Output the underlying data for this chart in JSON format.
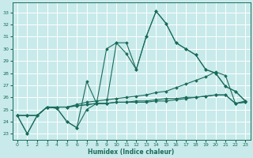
{
  "xlabel": "Humidex (Indice chaleur)",
  "xlim": [
    -0.5,
    23.5
  ],
  "ylim": [
    22.5,
    33.8
  ],
  "yticks": [
    23,
    24,
    25,
    26,
    27,
    28,
    29,
    30,
    31,
    32,
    33
  ],
  "xticks": [
    0,
    1,
    2,
    3,
    4,
    5,
    6,
    7,
    8,
    9,
    10,
    11,
    12,
    13,
    14,
    15,
    16,
    17,
    18,
    19,
    20,
    21,
    22,
    23
  ],
  "bg_color": "#c8eaea",
  "line_color": "#1a6b5a",
  "grid_color": "#ffffff",
  "lines": [
    [
      24.5,
      23.0,
      24.5,
      25.2,
      25.1,
      24.0,
      23.5,
      25.0,
      25.5,
      25.5,
      30.5,
      30.5,
      28.3,
      31.0,
      33.1,
      32.1,
      30.5,
      30.0,
      29.5,
      28.3,
      28.0,
      26.9,
      26.5,
      25.7
    ],
    [
      24.5,
      23.0,
      24.5,
      25.2,
      25.1,
      24.0,
      23.5,
      27.3,
      25.5,
      30.0,
      30.5,
      29.6,
      28.3,
      31.0,
      33.1,
      32.1,
      30.5,
      30.0,
      29.5,
      28.3,
      28.0,
      26.9,
      26.5,
      25.7
    ],
    [
      24.5,
      24.5,
      24.5,
      25.2,
      25.2,
      25.2,
      25.4,
      25.6,
      25.7,
      25.8,
      25.9,
      26.0,
      26.1,
      26.2,
      26.4,
      26.5,
      26.8,
      27.1,
      27.4,
      27.7,
      28.1,
      27.8,
      25.5,
      25.7
    ],
    [
      24.5,
      24.5,
      24.5,
      25.2,
      25.2,
      25.2,
      25.3,
      25.4,
      25.5,
      25.5,
      25.6,
      25.6,
      25.6,
      25.6,
      25.7,
      25.7,
      25.8,
      25.9,
      26.0,
      26.1,
      26.2,
      26.2,
      25.5,
      25.6
    ],
    [
      24.5,
      24.5,
      24.5,
      25.2,
      25.2,
      25.2,
      25.3,
      25.4,
      25.5,
      25.5,
      25.6,
      25.6,
      25.7,
      25.7,
      25.8,
      25.9,
      25.9,
      26.0,
      26.0,
      26.1,
      26.2,
      26.2,
      25.5,
      25.6
    ]
  ]
}
